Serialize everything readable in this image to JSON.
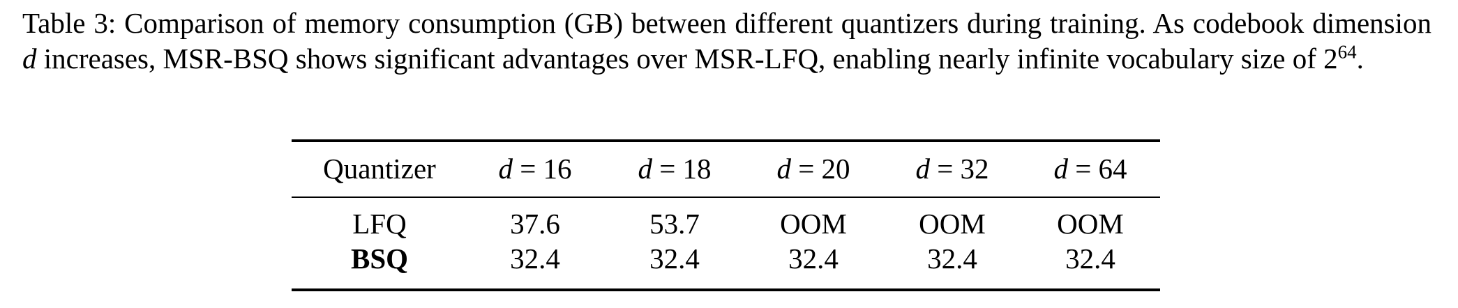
{
  "caption": {
    "label": "Table 3:",
    "text_before_d": "Comparison of memory consumption (GB) between different quantizers during training. As codebook dimension",
    "d_symbol": "d",
    "text_after_d": "increases, MSR-BSQ shows significant advantages over MSR-LFQ, enabling nearly infinite vocabulary size of 2",
    "superscript": "64",
    "end": "."
  },
  "table": {
    "headers": [
      "Quantizer",
      "d = 16",
      "d = 18",
      "d = 20",
      "d = 32",
      "d = 64"
    ],
    "rows": [
      {
        "label": "LFQ",
        "bold": false,
        "values": [
          "37.6",
          "53.7",
          "OOM",
          "OOM",
          "OOM"
        ]
      },
      {
        "label": "BSQ",
        "bold": true,
        "values": [
          "32.4",
          "32.4",
          "32.4",
          "32.4",
          "32.4"
        ]
      }
    ]
  }
}
